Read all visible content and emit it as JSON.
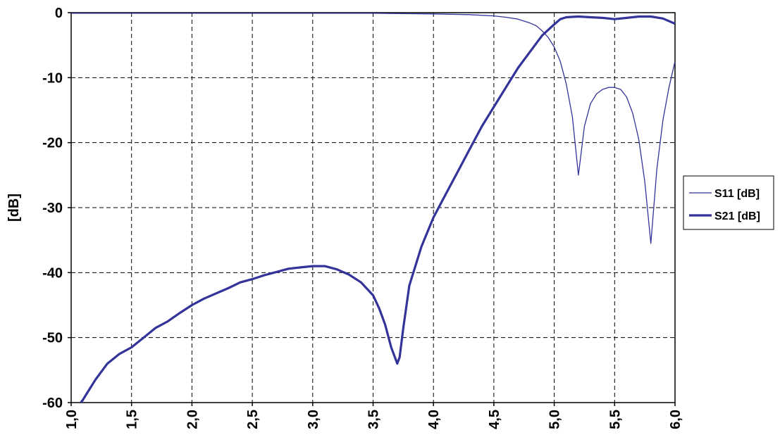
{
  "chart_data": {
    "type": "line",
    "title": "",
    "xlabel": "",
    "ylabel": "[dB]",
    "xlim": [
      1.0,
      6.0
    ],
    "ylim": [
      -60,
      0
    ],
    "x_ticks": [
      "1,0",
      "1,5",
      "2,0",
      "2,5",
      "3,0",
      "3,5",
      "4,0",
      "4,5",
      "5,0",
      "5,5",
      "6,0"
    ],
    "y_ticks": [
      "0",
      "-10",
      "-20",
      "-30",
      "-40",
      "-50",
      "-60"
    ],
    "grid": true,
    "legend_position": "right",
    "colors": {
      "series": "#333399",
      "axis": "#000000",
      "background": "#ffffff"
    },
    "series": [
      {
        "name": "S11 [dB]",
        "line_style": "thin",
        "x": [
          1.0,
          1.5,
          2.0,
          2.5,
          3.0,
          3.5,
          4.0,
          4.3,
          4.5,
          4.6,
          4.7,
          4.8,
          4.85,
          4.9,
          4.95,
          5.0,
          5.05,
          5.1,
          5.15,
          5.2,
          5.25,
          5.3,
          5.35,
          5.4,
          5.45,
          5.5,
          5.55,
          5.6,
          5.65,
          5.7,
          5.75,
          5.8,
          5.85,
          5.9,
          5.95,
          6.0
        ],
        "y": [
          -0.1,
          -0.1,
          -0.1,
          -0.1,
          -0.1,
          -0.1,
          -0.2,
          -0.3,
          -0.5,
          -0.7,
          -1.0,
          -1.6,
          -2.0,
          -2.8,
          -3.8,
          -5.3,
          -7.5,
          -11.0,
          -16.0,
          -25.0,
          -17.5,
          -14.0,
          -12.5,
          -11.8,
          -11.5,
          -11.5,
          -11.8,
          -13.0,
          -15.5,
          -19.5,
          -26.0,
          -35.5,
          -24.0,
          -16.5,
          -11.5,
          -7.5
        ]
      },
      {
        "name": "S21 [dB]",
        "line_style": "thick",
        "x": [
          1.08,
          1.1,
          1.2,
          1.3,
          1.4,
          1.5,
          1.6,
          1.7,
          1.8,
          1.9,
          2.0,
          2.1,
          2.2,
          2.3,
          2.4,
          2.5,
          2.6,
          2.7,
          2.8,
          2.9,
          3.0,
          3.1,
          3.2,
          3.3,
          3.4,
          3.5,
          3.55,
          3.6,
          3.65,
          3.7,
          3.72,
          3.75,
          3.8,
          3.9,
          4.0,
          4.1,
          4.2,
          4.3,
          4.4,
          4.5,
          4.6,
          4.7,
          4.8,
          4.9,
          5.0,
          5.05,
          5.1,
          5.2,
          5.3,
          5.4,
          5.5,
          5.6,
          5.7,
          5.8,
          5.9,
          6.0
        ],
        "y": [
          -60.0,
          -59.5,
          -56.5,
          -54.0,
          -52.5,
          -51.5,
          -50.0,
          -48.5,
          -47.5,
          -46.2,
          -45.0,
          -44.0,
          -43.2,
          -42.4,
          -41.5,
          -41.0,
          -40.4,
          -39.9,
          -39.4,
          -39.2,
          -39.0,
          -39.0,
          -39.5,
          -40.3,
          -41.5,
          -43.5,
          -45.5,
          -48.0,
          -51.5,
          -54.0,
          -53.0,
          -48.5,
          -42.0,
          -36.0,
          -31.5,
          -28.0,
          -24.5,
          -21.0,
          -17.5,
          -14.5,
          -11.5,
          -8.5,
          -6.0,
          -3.5,
          -1.8,
          -1.0,
          -0.7,
          -0.6,
          -0.7,
          -0.8,
          -1.0,
          -0.8,
          -0.6,
          -0.6,
          -0.9,
          -1.7
        ]
      }
    ]
  }
}
